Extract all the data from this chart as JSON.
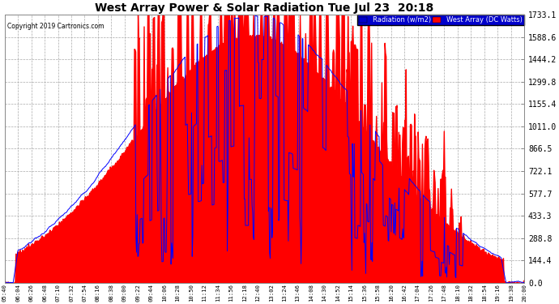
{
  "title": "West Array Power & Solar Radiation Tue Jul 23  20:18",
  "copyright": "Copyright 2019 Cartronics.com",
  "legend_radiation": "Radiation (w/m2)",
  "legend_west_array": "West Array (DC Watts)",
  "ylabel_right_ticks": [
    0.0,
    144.4,
    288.8,
    433.3,
    577.7,
    722.1,
    866.5,
    1011.0,
    1155.4,
    1299.8,
    1444.2,
    1588.6,
    1733.1
  ],
  "ymax": 1733.1,
  "ymin": 0.0,
  "bg_color": "#ffffff",
  "plot_bg_color": "#ffffff",
  "grid_color": "#aaaaaa",
  "fill_color": "#ff0000",
  "line_color": "#0000ff",
  "title_color": "#000000",
  "x_labels": [
    "05:40",
    "06:04",
    "06:26",
    "06:48",
    "07:10",
    "07:32",
    "07:54",
    "08:16",
    "08:38",
    "09:00",
    "09:22",
    "09:44",
    "10:06",
    "10:28",
    "10:50",
    "11:12",
    "11:34",
    "11:56",
    "12:18",
    "12:40",
    "13:02",
    "13:24",
    "13:46",
    "14:08",
    "14:30",
    "14:52",
    "15:14",
    "15:36",
    "15:58",
    "16:20",
    "16:42",
    "17:04",
    "17:26",
    "17:48",
    "18:10",
    "18:32",
    "18:54",
    "19:16",
    "19:38",
    "20:00"
  ],
  "num_points": 860
}
